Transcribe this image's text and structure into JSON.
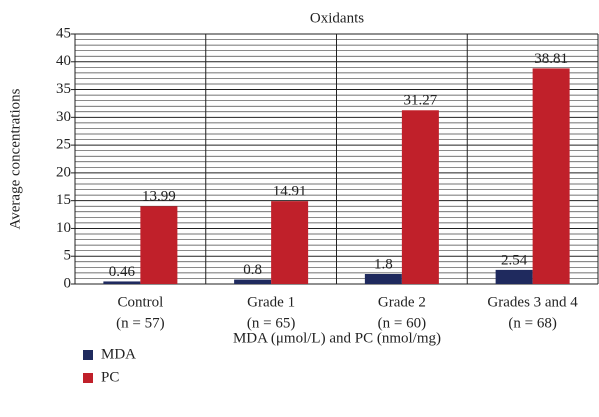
{
  "chart_data": {
    "type": "bar",
    "title": "Oxidants",
    "y_label": "Average concentrations",
    "x_label": "MDA (μmol/L) and PC (nmol/mg)",
    "categories": [
      "Control",
      "Grade 1",
      "Grade 2",
      "Grades 3 and 4"
    ],
    "category_sublabels": [
      "(n = 57)",
      "(n = 65)",
      "(n = 60)",
      "(n = 68)"
    ],
    "series": [
      {
        "name": "MDA",
        "color": "#1f2a5e",
        "values": [
          0.46,
          0.8,
          1.8,
          2.54
        ]
      },
      {
        "name": "PC",
        "color": "#c0202a",
        "values": [
          13.99,
          14.91,
          31.27,
          38.81
        ]
      }
    ],
    "ylim": [
      0,
      45
    ],
    "yticks": [
      0,
      5,
      10,
      15,
      20,
      25,
      30,
      35,
      40,
      45
    ],
    "grid": true
  }
}
